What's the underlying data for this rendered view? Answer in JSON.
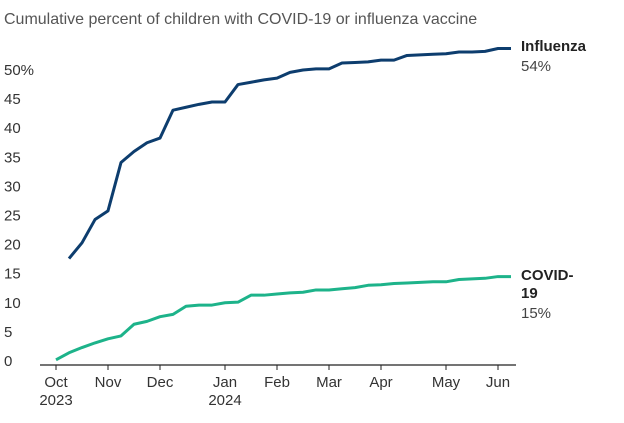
{
  "chart_data": {
    "type": "line",
    "title": "Cumulative percent of children with COVID-19 or influenza vaccine",
    "categories": [
      "Oct 2023",
      null,
      null,
      null,
      "Nov",
      null,
      null,
      null,
      "Dec",
      null,
      null,
      null,
      null,
      "Jan 2024",
      null,
      null,
      null,
      "Feb",
      null,
      null,
      null,
      "Mar",
      null,
      null,
      null,
      "Apr",
      null,
      null,
      null,
      null,
      "May",
      null,
      null,
      null,
      "Jun",
      null
    ],
    "series": [
      {
        "name": "Influenza",
        "color": "#0d3d6e",
        "end_label": "54%",
        "values": [
          null,
          18.3,
          21,
          25,
          26.5,
          34.8,
          36.7,
          38.2,
          39,
          43.8,
          44.3,
          44.8,
          45.2,
          45.2,
          48.2,
          48.6,
          49,
          49.3,
          50.3,
          50.7,
          50.9,
          50.9,
          51.9,
          52,
          52.1,
          52.4,
          52.4,
          53.2,
          53.3,
          53.4,
          53.5,
          53.8,
          53.8,
          53.9,
          54.4,
          54.4
        ]
      },
      {
        "name": "COVID-19",
        "color": "#1db38a",
        "end_label": "15%",
        "values": [
          0.9,
          2.1,
          3,
          3.8,
          4.5,
          5,
          7,
          7.5,
          8.3,
          8.7,
          10.1,
          10.3,
          10.3,
          10.7,
          10.8,
          12,
          12,
          12.2,
          12.4,
          12.5,
          12.9,
          12.9,
          13.1,
          13.3,
          13.7,
          13.8,
          14,
          14.1,
          14.2,
          14.3,
          14.3,
          14.7,
          14.8,
          14.9,
          15.2,
          15.2
        ]
      }
    ],
    "ylim": [
      0,
      55
    ],
    "yticks": [
      0,
      5,
      10,
      15,
      20,
      25,
      30,
      35,
      40,
      45,
      {
        "value": 50,
        "label": "50%"
      }
    ],
    "grid": false
  }
}
